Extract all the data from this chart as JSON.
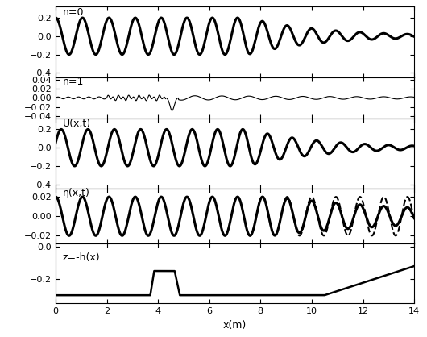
{
  "xlim": [
    0,
    14
  ],
  "xticks": [
    0,
    2,
    4,
    6,
    8,
    10,
    12,
    14
  ],
  "xlabel": "x(m)",
  "subplot_height_ratios": [
    1.3,
    0.75,
    1.3,
    1.0,
    1.1
  ],
  "panel0": {
    "label": "n=0",
    "ylim": [
      -0.45,
      0.32
    ],
    "yticks": [
      -0.4,
      -0.2,
      0,
      0.2
    ],
    "linewidth": 2.2,
    "color": "black"
  },
  "panel1": {
    "label": "n=1",
    "ylim": [
      -0.045,
      0.045
    ],
    "yticks": [
      -0.04,
      -0.02,
      0,
      0.02,
      0.04
    ],
    "linewidth": 0.8,
    "color": "black"
  },
  "panel2": {
    "label": "U(x,t)",
    "ylim": [
      -0.45,
      0.32
    ],
    "yticks": [
      -0.4,
      -0.2,
      0,
      0.2
    ],
    "linewidth": 2.2,
    "color": "black"
  },
  "panel3": {
    "label": "η(x,t)",
    "ylim": [
      -0.028,
      0.028
    ],
    "yticks": [
      -0.02,
      0,
      0.02
    ],
    "linewidth_solid": 2.2,
    "linewidth_dashed": 1.5,
    "color": "black"
  },
  "panel4": {
    "label": "z=-h(x)",
    "ylim": [
      -0.35,
      0.02
    ],
    "yticks": [
      -0.2,
      0
    ],
    "linewidth": 1.8,
    "color": "black"
  },
  "figure_bg": "white",
  "axes_bg": "white"
}
